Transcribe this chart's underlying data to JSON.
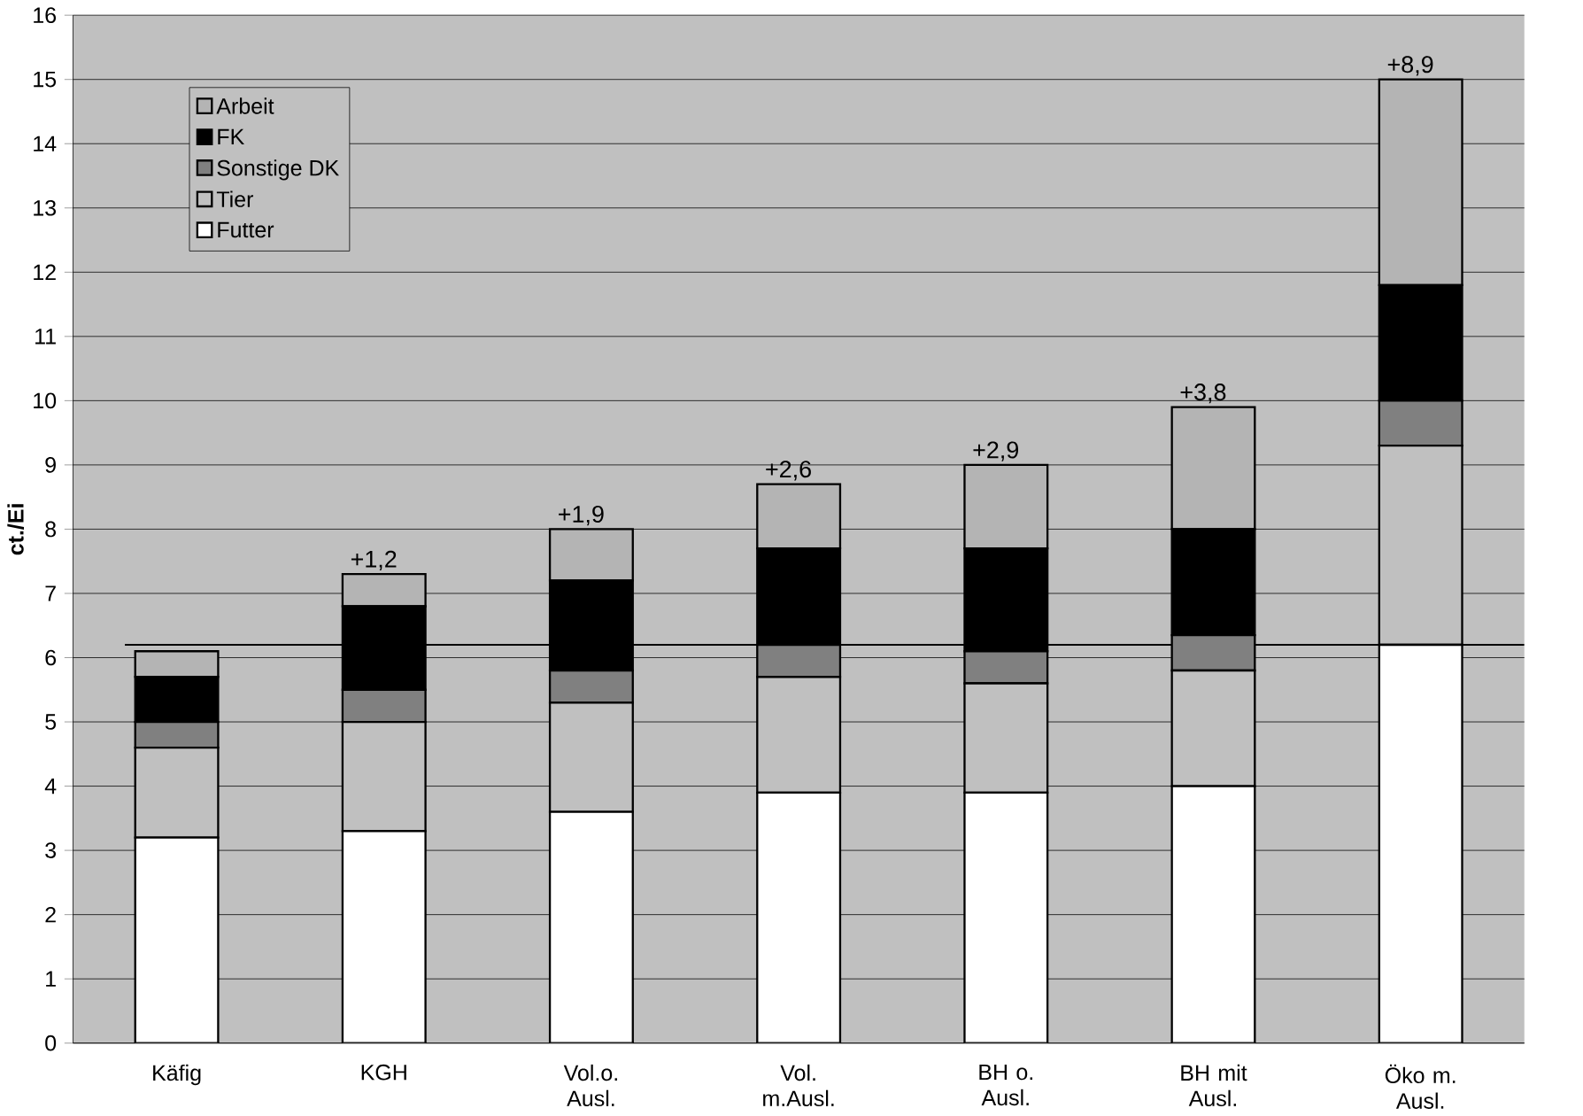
{
  "chart_data": {
    "type": "bar",
    "stacked": true,
    "ylabel": "ct./Ei",
    "categories": [
      "Käfig",
      "KGH",
      "Vol.o. Ausl.",
      "Vol. m.Ausl.",
      "BH o. Ausl.",
      "BH mit Ausl.",
      "Öko m. Ausl."
    ],
    "series": [
      {
        "name": "Futter",
        "color": "#ffffff",
        "values": [
          3.2,
          3.3,
          3.6,
          3.9,
          3.9,
          4.0,
          6.2
        ]
      },
      {
        "name": "Tier",
        "color": "#c0c0c0",
        "values": [
          1.4,
          1.7,
          1.7,
          1.8,
          1.7,
          1.8,
          3.1
        ]
      },
      {
        "name": "Sonstige DK",
        "color": "#808080",
        "values": [
          0.4,
          0.5,
          0.5,
          0.5,
          0.5,
          0.55,
          0.7
        ]
      },
      {
        "name": "FK",
        "color": "#000000",
        "values": [
          0.7,
          1.3,
          1.4,
          1.5,
          1.6,
          1.65,
          1.8
        ]
      },
      {
        "name": "Arbeit",
        "color": "#b4b4b4",
        "values": [
          0.4,
          0.5,
          0.8,
          1.0,
          1.3,
          1.9,
          3.2
        ]
      }
    ],
    "ylim": [
      0,
      16
    ],
    "yticks": [
      0,
      1,
      2,
      3,
      4,
      5,
      6,
      7,
      8,
      9,
      10,
      11,
      12,
      13,
      14,
      15,
      16
    ],
    "grid": "y",
    "legend": "top left",
    "ref_lines": [
      {
        "axis": "y",
        "value": 6.2,
        "color": "#000000"
      }
    ],
    "annotations": [
      {
        "text": "+1,2",
        "x": "KGH",
        "y": 7.3
      },
      {
        "text": "+1,9",
        "x": "Vol.o. Ausl.",
        "y": 8.0
      },
      {
        "text": "+2,6",
        "x": "Vol. m.Ausl.",
        "y": 8.7
      },
      {
        "text": "+2,9",
        "x": "BH o. Ausl.",
        "y": 9.0
      },
      {
        "text": "+3,8",
        "x": "BH mit Ausl.",
        "y": 9.9
      },
      {
        "text": "+8,9",
        "x": "Öko m. Ausl.",
        "y": 15.0
      }
    ]
  }
}
